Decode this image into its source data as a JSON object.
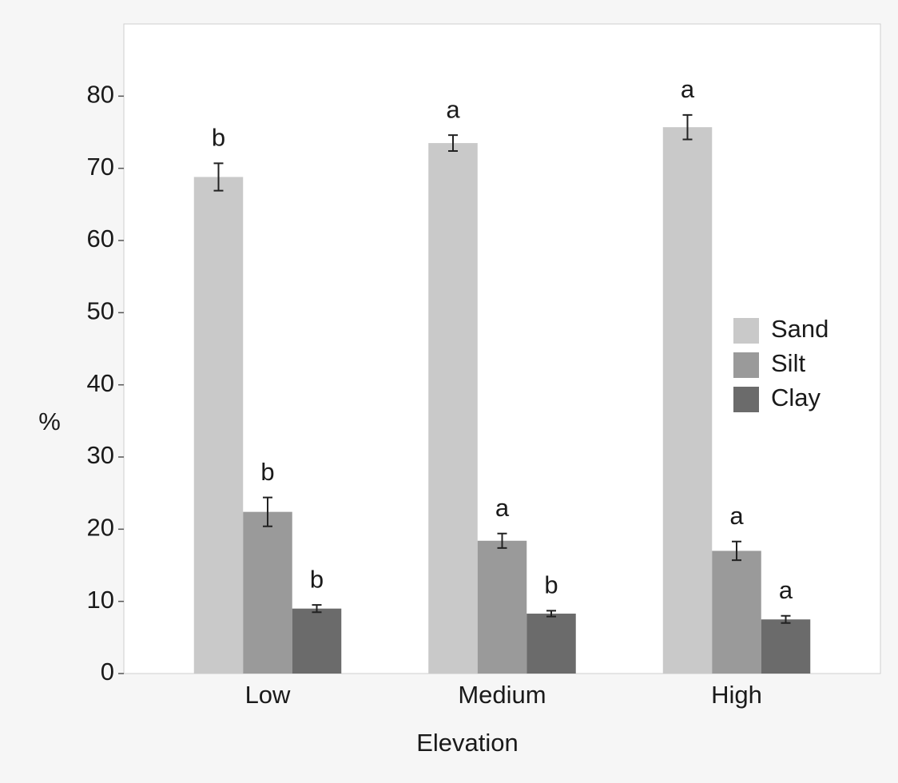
{
  "chart_data": {
    "type": "bar",
    "x_label": "Elevation",
    "y_label": "%",
    "categories": [
      "Low",
      "Medium",
      "High"
    ],
    "series": [
      {
        "name": "Sand",
        "color": "#c9c9c9",
        "values": [
          68.8,
          73.5,
          75.7
        ],
        "errors": [
          1.9,
          1.1,
          1.7
        ],
        "labels": [
          "b",
          "a",
          "a"
        ]
      },
      {
        "name": "Silt",
        "color": "#9a9a9a",
        "values": [
          22.4,
          18.4,
          17.0
        ],
        "errors": [
          2.0,
          1.0,
          1.3
        ],
        "labels": [
          "b",
          "a",
          "a"
        ]
      },
      {
        "name": "Clay",
        "color": "#6b6b6b",
        "values": [
          9.0,
          8.3,
          7.5
        ],
        "errors": [
          0.5,
          0.4,
          0.5
        ],
        "labels": [
          "b",
          "b",
          "a"
        ]
      }
    ],
    "ylim": [
      0,
      90
    ],
    "yticks": [
      0,
      10,
      20,
      30,
      40,
      50,
      60,
      70,
      80
    ]
  }
}
